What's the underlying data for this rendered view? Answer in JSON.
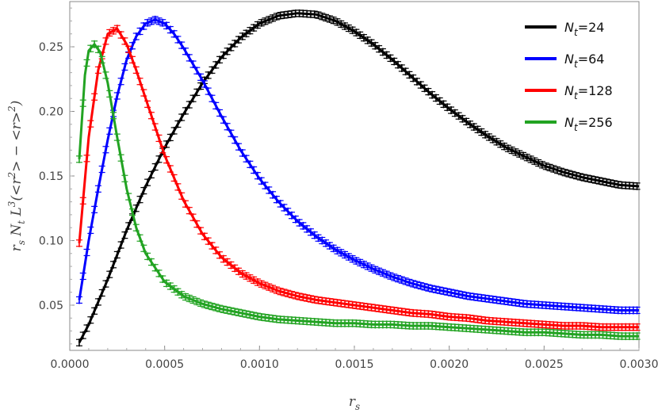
{
  "chart_data": {
    "type": "line",
    "title": "",
    "xlabel": "r_s",
    "ylabel": "r_s N_t L^3(<r^2> − <r>^2)",
    "xlim": [
      0.0,
      0.003
    ],
    "ylim": [
      0.015,
      0.285
    ],
    "x_ticks": [
      0.0,
      0.0005,
      0.001,
      0.0015,
      0.002,
      0.0025,
      0.003
    ],
    "x_tick_labels": [
      "0.0000",
      "0.0005",
      "0.0010",
      "0.0015",
      "0.0020",
      "0.0025",
      "0.0030"
    ],
    "y_ticks": [
      0.05,
      0.1,
      0.15,
      0.2,
      0.25
    ],
    "y_tick_labels": [
      "0.05",
      "0.10",
      "0.15",
      "0.20",
      "0.25"
    ],
    "grid": false,
    "legend_position": "top-right",
    "series": [
      {
        "name": "N_t=24",
        "legend_sub": "t",
        "legend_value": "=24",
        "color": "#000000",
        "x": [
          5e-05,
          0.0001,
          0.0002,
          0.0003,
          0.0004,
          0.0005,
          0.0006,
          0.0007,
          0.0008,
          0.0009,
          0.001,
          0.0011,
          0.0012,
          0.0013,
          0.0014,
          0.0015,
          0.0016,
          0.0017,
          0.0018,
          0.0019,
          0.002,
          0.0021,
          0.0022,
          0.0023,
          0.0024,
          0.0025,
          0.0026,
          0.0027,
          0.0028,
          0.0029,
          0.003
        ],
        "y": [
          0.021,
          0.035,
          0.07,
          0.108,
          0.142,
          0.172,
          0.198,
          0.222,
          0.242,
          0.257,
          0.268,
          0.274,
          0.276,
          0.275,
          0.27,
          0.262,
          0.252,
          0.24,
          0.227,
          0.214,
          0.202,
          0.191,
          0.181,
          0.172,
          0.165,
          0.158,
          0.153,
          0.149,
          0.146,
          0.143,
          0.142
        ]
      },
      {
        "name": "N_t=64",
        "legend_sub": "t",
        "legend_value": "=64",
        "color": "#0000ff",
        "x": [
          5e-05,
          0.0001,
          0.00015,
          0.0002,
          0.00025,
          0.0003,
          0.00035,
          0.0004,
          0.00045,
          0.0005,
          0.00055,
          0.0006,
          0.0007,
          0.0008,
          0.0009,
          0.001,
          0.0011,
          0.0012,
          0.0013,
          0.0014,
          0.0015,
          0.0016,
          0.0017,
          0.0018,
          0.0019,
          0.002,
          0.0021,
          0.0022,
          0.0023,
          0.0024,
          0.0025,
          0.0026,
          0.0027,
          0.0028,
          0.0029,
          0.003
        ],
        "y": [
          0.054,
          0.1,
          0.14,
          0.178,
          0.212,
          0.24,
          0.258,
          0.268,
          0.271,
          0.268,
          0.26,
          0.249,
          0.224,
          0.196,
          0.17,
          0.148,
          0.13,
          0.115,
          0.103,
          0.093,
          0.085,
          0.078,
          0.072,
          0.067,
          0.063,
          0.06,
          0.057,
          0.055,
          0.053,
          0.051,
          0.05,
          0.049,
          0.048,
          0.047,
          0.046,
          0.046
        ]
      },
      {
        "name": "N_t=128",
        "legend_sub": "t",
        "legend_value": "=128",
        "color": "#ff0000",
        "x": [
          5e-05,
          0.0001,
          0.00015,
          0.0002,
          0.00025,
          0.0003,
          0.00035,
          0.0004,
          0.0005,
          0.0006,
          0.0007,
          0.0008,
          0.0009,
          0.001,
          0.0011,
          0.0012,
          0.0013,
          0.0014,
          0.0015,
          0.0016,
          0.0017,
          0.0018,
          0.0019,
          0.002,
          0.0021,
          0.0022,
          0.0023,
          0.0024,
          0.0025,
          0.0026,
          0.0027,
          0.0028,
          0.0029,
          0.003
        ],
        "y": [
          0.098,
          0.18,
          0.232,
          0.26,
          0.264,
          0.252,
          0.232,
          0.21,
          0.166,
          0.131,
          0.105,
          0.087,
          0.075,
          0.067,
          0.061,
          0.057,
          0.054,
          0.052,
          0.05,
          0.048,
          0.046,
          0.044,
          0.043,
          0.041,
          0.04,
          0.038,
          0.037,
          0.036,
          0.035,
          0.034,
          0.034,
          0.033,
          0.033,
          0.033
        ]
      },
      {
        "name": "N_t=256",
        "legend_sub": "t",
        "legend_value": "=256",
        "color": "#22a322",
        "x": [
          5e-05,
          8e-05,
          0.0001,
          0.00013,
          0.00016,
          0.0002,
          0.00025,
          0.0003,
          0.00035,
          0.0004,
          0.0005,
          0.0006,
          0.0007,
          0.0008,
          0.0009,
          0.001,
          0.0011,
          0.0012,
          0.0013,
          0.0014,
          0.0015,
          0.0016,
          0.0017,
          0.0018,
          0.0019,
          0.002,
          0.0021,
          0.0022,
          0.0023,
          0.0024,
          0.0025,
          0.0026,
          0.0027,
          0.0028,
          0.0029,
          0.003
        ],
        "y": [
          0.163,
          0.228,
          0.247,
          0.252,
          0.246,
          0.222,
          0.18,
          0.14,
          0.11,
          0.09,
          0.068,
          0.057,
          0.051,
          0.047,
          0.044,
          0.041,
          0.039,
          0.038,
          0.037,
          0.036,
          0.036,
          0.035,
          0.035,
          0.034,
          0.034,
          0.033,
          0.032,
          0.031,
          0.03,
          0.029,
          0.029,
          0.028,
          0.027,
          0.027,
          0.026,
          0.026
        ]
      }
    ]
  }
}
